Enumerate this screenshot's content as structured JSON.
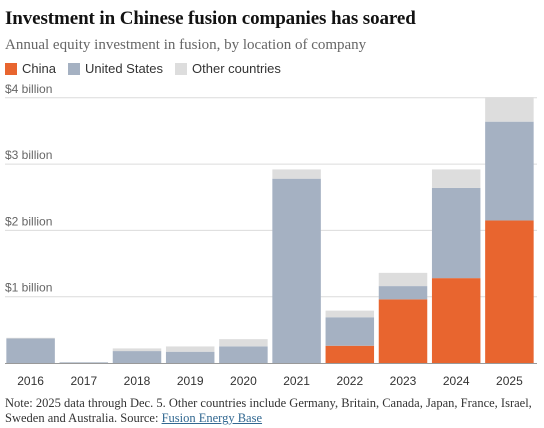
{
  "chart_data": {
    "type": "bar",
    "stacked": true,
    "title": "Investment in Chinese fusion companies has soared",
    "subtitle": "Annual equity investment in fusion, by location of company",
    "categories": [
      "2016",
      "2017",
      "2018",
      "2019",
      "2020",
      "2021",
      "2022",
      "2023",
      "2024",
      "2025"
    ],
    "series": [
      {
        "name": "China",
        "color": "#e8652f",
        "values": [
          0,
          0,
          0,
          0,
          0,
          0,
          0.26,
          0.96,
          1.28,
          2.15
        ]
      },
      {
        "name": "United States",
        "color": "#a5b1c2",
        "values": [
          0.37,
          0.01,
          0.18,
          0.17,
          0.25,
          2.78,
          0.43,
          0.2,
          1.36,
          1.49
        ]
      },
      {
        "name": "Other countries",
        "color": "#dddddd",
        "values": [
          0.01,
          0,
          0.04,
          0.08,
          0.11,
          0.14,
          0.1,
          0.2,
          0.28,
          0.37
        ]
      }
    ],
    "ylim": [
      0,
      4
    ],
    "yticks": [
      {
        "value": 1,
        "label": "$1 billion"
      },
      {
        "value": 2,
        "label": "$2 billion"
      },
      {
        "value": 3,
        "label": "$3 billion"
      },
      {
        "value": 4,
        "label": "$4 billion"
      }
    ],
    "grid": true,
    "legend_position": "top-left"
  },
  "note": {
    "text": "Note: 2025 data through Dec. 5. Other countries include Germany, Britain, Canada, Japan, France, Israel, Sweden and Australia. Source: ",
    "source_link": "Fusion Energy Base"
  }
}
